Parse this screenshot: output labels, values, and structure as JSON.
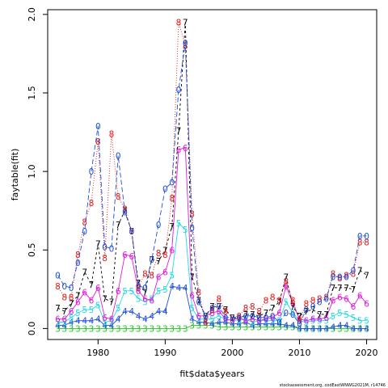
{
  "chart_data": {
    "type": "line",
    "title": "",
    "xlabel": "fit$data$years",
    "ylabel": "faytable(fit)",
    "xlim": [
      1972.5,
      2021.5
    ],
    "ylim": [
      -0.07,
      2.03
    ],
    "xticks": [
      1980,
      1990,
      2000,
      2010,
      2020
    ],
    "yticks": [
      0.0,
      0.5,
      1.0,
      1.5,
      2.0
    ],
    "ytick_labels": [
      "0.0",
      "0.5",
      "1.0",
      "1.5",
      "2.0"
    ],
    "grid": false,
    "legend": "none",
    "footnote": "stockassessment.org, codEastWNWG2021M, r14746",
    "series": [
      {
        "symbol": "0",
        "color": "#1f4fd8",
        "dash": "6,3",
        "x": [
          1974,
          1975,
          1976,
          1977,
          1978,
          1979,
          1980,
          1981,
          1982,
          1983,
          1984,
          1985,
          1986,
          1987,
          1988,
          1989,
          1990,
          1991,
          1992,
          1993,
          1994,
          1995,
          1996,
          1997,
          1998,
          1999,
          2000,
          2001,
          2002,
          2003,
          2004,
          2005,
          2006,
          2007,
          2008,
          2009,
          2010,
          2011,
          2012,
          2013,
          2014,
          2015,
          2016,
          2017,
          2018,
          2019,
          2020
        ],
        "y": [
          0.34,
          0.27,
          0.26,
          0.42,
          0.62,
          1.0,
          1.29,
          0.52,
          0.51,
          1.1,
          0.74,
          0.62,
          0.27,
          0.26,
          0.44,
          0.66,
          0.89,
          0.93,
          1.52,
          1.82,
          0.64,
          0.17,
          0.08,
          0.13,
          0.14,
          0.07,
          0.07,
          0.07,
          0.08,
          0.08,
          0.07,
          0.07,
          0.08,
          0.04,
          0.1,
          0.09,
          0.03,
          0.12,
          0.14,
          0.17,
          0.19,
          0.33,
          0.33,
          0.33,
          0.37,
          0.59,
          0.59
        ]
      },
      {
        "symbol": "8",
        "color": "#e01b1b",
        "dash": "1,2",
        "x": [
          1974,
          1975,
          1976,
          1977,
          1978,
          1979,
          1980,
          1981,
          1982,
          1983,
          1984,
          1985,
          1986,
          1987,
          1988,
          1989,
          1990,
          1991,
          1992,
          1993,
          1994,
          1995,
          1996,
          1997,
          1998,
          1999,
          2000,
          2001,
          2002,
          2003,
          2004,
          2005,
          2006,
          2007,
          2008,
          2009,
          2010,
          2011,
          2012,
          2013,
          2014,
          2015,
          2016,
          2017,
          2018,
          2019,
          2020
        ],
        "y": [
          0.27,
          0.2,
          0.2,
          0.47,
          0.68,
          0.8,
          1.19,
          0.45,
          1.24,
          0.84,
          0.76,
          0.62,
          0.26,
          0.35,
          0.34,
          0.48,
          0.47,
          0.83,
          1.95,
          1.8,
          0.73,
          0.23,
          0.04,
          0.12,
          0.19,
          0.11,
          0.07,
          0.08,
          0.13,
          0.14,
          0.11,
          0.18,
          0.2,
          0.18,
          0.3,
          0.18,
          0.05,
          0.16,
          0.18,
          0.19,
          0.2,
          0.35,
          0.32,
          0.34,
          0.35,
          0.55,
          0.55
        ]
      },
      {
        "symbol": "7",
        "color": "#000000",
        "dash": "3,3",
        "x": [
          1974,
          1975,
          1976,
          1977,
          1978,
          1979,
          1980,
          1981,
          1982,
          1983,
          1984,
          1985,
          1986,
          1987,
          1988,
          1989,
          1990,
          1991,
          1992,
          1993,
          1994,
          1995,
          1996,
          1997,
          1998,
          1999,
          2000,
          2001,
          2002,
          2003,
          2004,
          2005,
          2006,
          2007,
          2008,
          2009,
          2010,
          2011,
          2012,
          2013,
          2014,
          2015,
          2016,
          2017,
          2018,
          2019,
          2020
        ],
        "y": [
          0.13,
          0.11,
          0.16,
          0.21,
          0.36,
          0.28,
          0.54,
          0.19,
          0.17,
          0.66,
          0.75,
          0.62,
          0.29,
          0.23,
          0.44,
          0.43,
          0.5,
          0.65,
          1.26,
          1.95,
          0.33,
          0.18,
          0.08,
          0.14,
          0.14,
          0.12,
          0.07,
          0.06,
          0.09,
          0.09,
          0.08,
          0.1,
          0.13,
          0.17,
          0.33,
          0.14,
          0.08,
          0.11,
          0.12,
          0.09,
          0.09,
          0.26,
          0.26,
          0.26,
          0.25,
          0.37,
          0.34
        ]
      },
      {
        "symbol": "6",
        "color": "#e01bd8",
        "dash": "none",
        "x": [
          1974,
          1975,
          1976,
          1977,
          1978,
          1979,
          1980,
          1981,
          1982,
          1983,
          1984,
          1985,
          1986,
          1987,
          1988,
          1989,
          1990,
          1991,
          1992,
          1993,
          1994,
          1995,
          1996,
          1997,
          1998,
          1999,
          2000,
          2001,
          2002,
          2003,
          2004,
          2005,
          2006,
          2007,
          2008,
          2009,
          2010,
          2011,
          2012,
          2013,
          2014,
          2015,
          2016,
          2017,
          2018,
          2019,
          2020
        ],
        "y": [
          0.06,
          0.06,
          0.11,
          0.17,
          0.23,
          0.18,
          0.26,
          0.07,
          0.06,
          0.24,
          0.47,
          0.46,
          0.24,
          0.19,
          0.18,
          0.33,
          0.36,
          0.5,
          1.14,
          1.15,
          0.21,
          0.08,
          0.08,
          0.1,
          0.11,
          0.06,
          0.05,
          0.07,
          0.05,
          0.06,
          0.05,
          0.06,
          0.07,
          0.1,
          0.27,
          0.16,
          0.06,
          0.05,
          0.06,
          0.06,
          0.07,
          0.18,
          0.2,
          0.19,
          0.14,
          0.21,
          0.16
        ]
      },
      {
        "symbol": "5",
        "color": "#22d8e6",
        "dash": "none",
        "x": [
          1974,
          1975,
          1976,
          1977,
          1978,
          1979,
          1980,
          1981,
          1982,
          1983,
          1984,
          1985,
          1986,
          1987,
          1988,
          1989,
          1990,
          1991,
          1992,
          1993,
          1994,
          1995,
          1996,
          1997,
          1998,
          1999,
          2000,
          2001,
          2002,
          2003,
          2004,
          2005,
          2006,
          2007,
          2008,
          2009,
          2010,
          2011,
          2012,
          2013,
          2014,
          2015,
          2016,
          2017,
          2018,
          2019,
          2020
        ],
        "y": [
          0.04,
          0.04,
          0.07,
          0.1,
          0.12,
          0.12,
          0.15,
          0.04,
          0.05,
          0.13,
          0.24,
          0.24,
          0.19,
          0.17,
          0.19,
          0.24,
          0.25,
          0.34,
          0.67,
          0.63,
          0.13,
          0.06,
          0.06,
          0.06,
          0.08,
          0.06,
          0.05,
          0.05,
          0.06,
          0.04,
          0.05,
          0.05,
          0.05,
          0.05,
          0.17,
          0.1,
          0.05,
          0.04,
          0.05,
          0.05,
          0.05,
          0.08,
          0.1,
          0.09,
          0.07,
          0.05,
          0.05
        ]
      },
      {
        "symbol": "4",
        "color": "#1f4fd8",
        "dash": "none",
        "x": [
          1974,
          1975,
          1976,
          1977,
          1978,
          1979,
          1980,
          1981,
          1982,
          1983,
          1984,
          1985,
          1986,
          1987,
          1988,
          1989,
          1990,
          1991,
          1992,
          1993,
          1994,
          1995,
          1996,
          1997,
          1998,
          1999,
          2000,
          2001,
          2002,
          2003,
          2004,
          2005,
          2006,
          2007,
          2008,
          2009,
          2010,
          2011,
          2012,
          2013,
          2014,
          2015,
          2016,
          2017,
          2018,
          2019,
          2020
        ],
        "y": [
          0.02,
          0.02,
          0.04,
          0.05,
          0.05,
          0.05,
          0.06,
          0.02,
          0.02,
          0.06,
          0.11,
          0.11,
          0.08,
          0.06,
          0.08,
          0.11,
          0.11,
          0.27,
          0.26,
          0.26,
          0.06,
          0.04,
          0.04,
          0.03,
          0.04,
          0.04,
          0.03,
          0.03,
          0.04,
          0.02,
          0.03,
          0.03,
          0.03,
          0.03,
          0.02,
          0.02,
          0.0,
          0.0,
          0.0,
          0.0,
          0.0,
          0.01,
          0.02,
          0.02,
          0.0,
          0.0,
          0.0
        ]
      },
      {
        "symbol": "3",
        "color": "#22c722",
        "dash": "none",
        "x": [
          1974,
          1975,
          1976,
          1977,
          1978,
          1979,
          1980,
          1981,
          1982,
          1983,
          1984,
          1985,
          1986,
          1987,
          1988,
          1989,
          1990,
          1991,
          1992,
          1993,
          1994,
          1995,
          1996,
          1997,
          1998,
          1999,
          2000,
          2001,
          2002,
          2003,
          2004,
          2005,
          2006,
          2007,
          2008,
          2009,
          2010,
          2011,
          2012,
          2013,
          2014,
          2015,
          2016,
          2017,
          2018,
          2019,
          2020
        ],
        "y": [
          0.0,
          0.0,
          0.0,
          0.0,
          0.0,
          0.0,
          0.0,
          0.0,
          0.0,
          0.0,
          0.0,
          0.0,
          0.0,
          0.0,
          0.0,
          0.0,
          0.0,
          0.0,
          0.0,
          0.0,
          0.02,
          0.02,
          0.02,
          0.02,
          0.01,
          0.01,
          0.01,
          0.01,
          0.01,
          0.01,
          0.01,
          0.01,
          0.01,
          0.01,
          0.01,
          0.01,
          0.0,
          0.0,
          0.0,
          0.0,
          0.0,
          0.0,
          0.0,
          0.0,
          0.0,
          0.0,
          0.0
        ]
      }
    ]
  }
}
